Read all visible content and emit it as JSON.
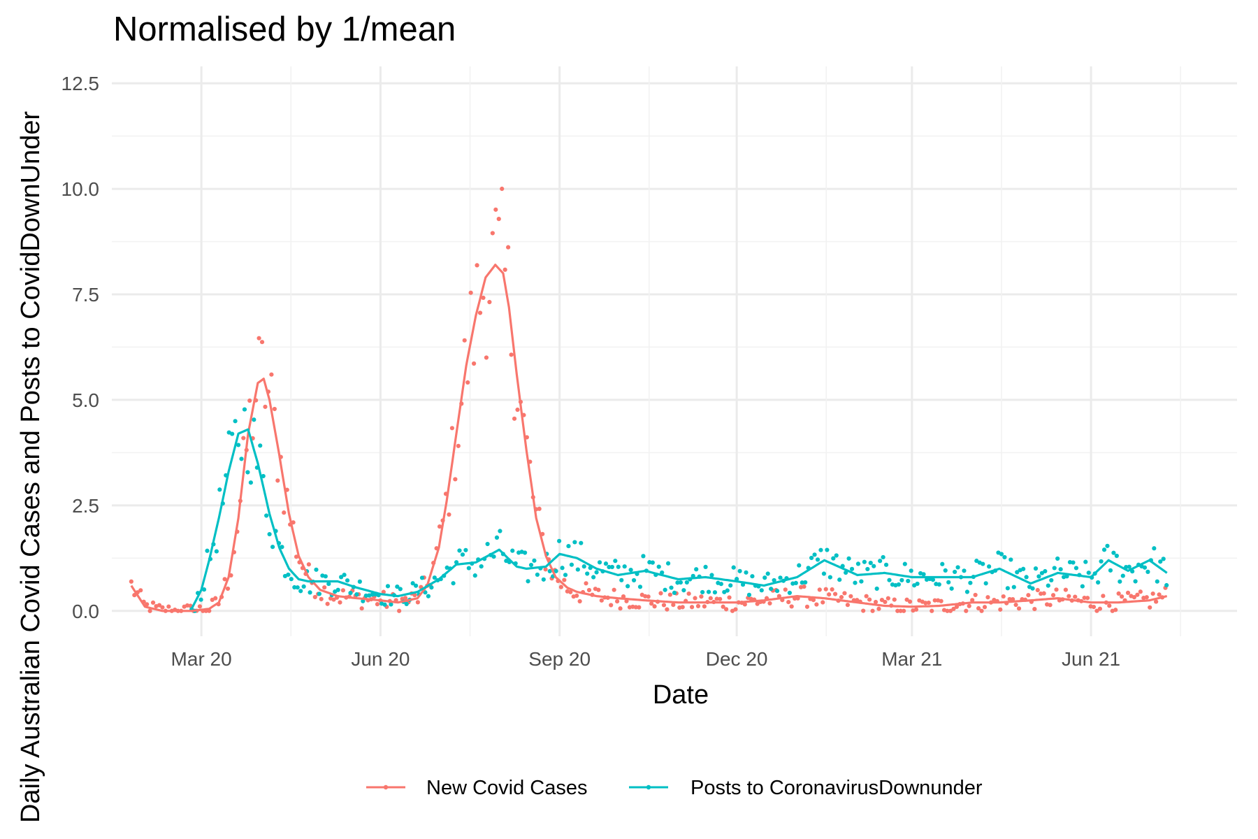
{
  "chart_data": {
    "type": "line",
    "title": "Normalised by 1/mean",
    "xlabel": "Date",
    "ylabel": "Daily Australian Covid Cases and Posts to CovidDownUnder",
    "x_ticks": [
      {
        "label": "Mar 20",
        "date": "2020-03-01"
      },
      {
        "label": "Jun 20",
        "date": "2020-06-01"
      },
      {
        "label": "Sep 20",
        "date": "2020-09-01"
      },
      {
        "label": "Dec 20",
        "date": "2020-12-01"
      },
      {
        "label": "Mar 21",
        "date": "2021-03-01"
      },
      {
        "label": "Jun 21",
        "date": "2021-06-01"
      }
    ],
    "y_ticks": [
      "0.0",
      "2.5",
      "5.0",
      "7.5",
      "10.0",
      "12.5"
    ],
    "ylim": [
      -0.6,
      12.9
    ],
    "xlim": [
      "2020-01-15",
      "2021-08-15"
    ],
    "grid": true,
    "legend_position": "bottom",
    "series": [
      {
        "name": "New Covid Cases",
        "color": "#F8766D",
        "smooth": {
          "x": [
            "2020-01-25",
            "2020-02-01",
            "2020-02-10",
            "2020-02-25",
            "2020-03-05",
            "2020-03-10",
            "2020-03-15",
            "2020-03-20",
            "2020-03-25",
            "2020-03-30",
            "2020-04-02",
            "2020-04-05",
            "2020-04-10",
            "2020-04-15",
            "2020-04-20",
            "2020-04-25",
            "2020-05-01",
            "2020-05-10",
            "2020-05-20",
            "2020-06-01",
            "2020-06-10",
            "2020-06-20",
            "2020-06-25",
            "2020-07-01",
            "2020-07-05",
            "2020-07-10",
            "2020-07-15",
            "2020-07-20",
            "2020-07-25",
            "2020-07-30",
            "2020-08-03",
            "2020-08-06",
            "2020-08-10",
            "2020-08-15",
            "2020-08-20",
            "2020-08-25",
            "2020-08-30",
            "2020-09-05",
            "2020-09-10",
            "2020-09-15",
            "2020-09-20",
            "2020-10-01",
            "2020-10-15",
            "2020-11-01",
            "2020-11-15",
            "2020-12-01",
            "2020-12-15",
            "2021-01-01",
            "2021-01-15",
            "2021-02-01",
            "2021-02-15",
            "2021-03-01",
            "2021-03-15",
            "2021-04-01",
            "2021-04-15",
            "2021-05-01",
            "2021-05-15",
            "2021-06-01",
            "2021-06-15",
            "2021-07-01",
            "2021-07-10"
          ],
          "y": [
            0.6,
            0.1,
            0.0,
            0.0,
            0.05,
            0.2,
            0.8,
            2.2,
            4.2,
            5.4,
            5.5,
            5.0,
            3.7,
            2.3,
            1.3,
            0.8,
            0.5,
            0.35,
            0.3,
            0.25,
            0.2,
            0.3,
            0.6,
            1.5,
            2.6,
            4.2,
            5.8,
            7.0,
            7.9,
            8.2,
            8.0,
            7.2,
            5.6,
            3.8,
            2.2,
            1.3,
            0.8,
            0.55,
            0.45,
            0.4,
            0.35,
            0.3,
            0.25,
            0.2,
            0.2,
            0.2,
            0.25,
            0.35,
            0.3,
            0.2,
            0.12,
            0.1,
            0.12,
            0.2,
            0.2,
            0.25,
            0.3,
            0.2,
            0.2,
            0.25,
            0.35
          ]
        }
      },
      {
        "name": "Posts to CoronavirusDownunder",
        "color": "#00BFC4",
        "smooth": {
          "x": [
            "2020-02-25",
            "2020-03-01",
            "2020-03-05",
            "2020-03-10",
            "2020-03-15",
            "2020-03-20",
            "2020-03-25",
            "2020-03-30",
            "2020-04-05",
            "2020-04-10",
            "2020-04-15",
            "2020-04-20",
            "2020-04-25",
            "2020-05-01",
            "2020-05-10",
            "2020-05-20",
            "2020-06-01",
            "2020-06-10",
            "2020-06-20",
            "2020-07-01",
            "2020-07-10",
            "2020-07-20",
            "2020-08-01",
            "2020-08-10",
            "2020-08-15",
            "2020-08-25",
            "2020-09-01",
            "2020-09-10",
            "2020-09-20",
            "2020-10-01",
            "2020-10-15",
            "2020-11-01",
            "2020-11-15",
            "2020-12-01",
            "2020-12-15",
            "2021-01-01",
            "2021-01-15",
            "2021-02-01",
            "2021-02-15",
            "2021-03-01",
            "2021-03-15",
            "2021-04-01",
            "2021-04-15",
            "2021-05-01",
            "2021-05-15",
            "2021-06-01",
            "2021-06-10",
            "2021-06-20",
            "2021-07-01",
            "2021-07-10"
          ],
          "y": [
            0.05,
            0.5,
            1.2,
            2.2,
            3.3,
            4.2,
            4.3,
            3.5,
            2.3,
            1.5,
            1.0,
            0.75,
            0.7,
            0.7,
            0.7,
            0.55,
            0.4,
            0.35,
            0.45,
            0.75,
            1.1,
            1.15,
            1.45,
            1.05,
            1.0,
            1.05,
            1.35,
            1.25,
            1.0,
            0.85,
            0.95,
            0.75,
            0.8,
            0.7,
            0.6,
            0.8,
            1.2,
            0.85,
            0.9,
            0.8,
            0.8,
            0.8,
            1.0,
            0.65,
            0.9,
            0.8,
            1.2,
            0.95,
            1.2,
            0.9
          ]
        }
      }
    ]
  }
}
